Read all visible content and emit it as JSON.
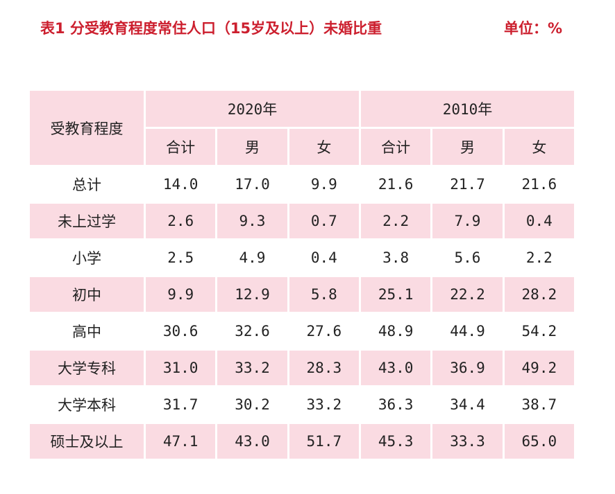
{
  "title": {
    "text": "表1  分受教育程度常住人口（15岁及以上）未婚比重",
    "unit": "单位：%"
  },
  "table": {
    "corner_label": "受教育程度",
    "years": [
      "2020年",
      "2010年"
    ],
    "subheaders": [
      "合计",
      "男",
      "女",
      "合计",
      "男",
      "女"
    ],
    "rows": [
      {
        "label": "总计",
        "values": [
          "14.0",
          "17.0",
          "9.9",
          "21.6",
          "21.7",
          "21.6"
        ]
      },
      {
        "label": "未上过学",
        "values": [
          "2.6",
          "9.3",
          "0.7",
          "2.2",
          "7.9",
          "0.4"
        ]
      },
      {
        "label": "小学",
        "values": [
          "2.5",
          "4.9",
          "0.4",
          "3.8",
          "5.6",
          "2.2"
        ]
      },
      {
        "label": "初中",
        "values": [
          "9.9",
          "12.9",
          "5.8",
          "25.1",
          "22.2",
          "28.2"
        ]
      },
      {
        "label": "高中",
        "values": [
          "30.6",
          "32.6",
          "27.6",
          "48.9",
          "44.9",
          "54.2"
        ]
      },
      {
        "label": "大学专科",
        "values": [
          "31.0",
          "33.2",
          "28.3",
          "43.0",
          "36.9",
          "49.2"
        ]
      },
      {
        "label": "大学本科",
        "values": [
          "31.7",
          "30.2",
          "33.2",
          "36.3",
          "34.4",
          "38.7"
        ]
      },
      {
        "label": "硕士及以上",
        "values": [
          "47.1",
          "43.0",
          "51.7",
          "45.3",
          "33.3",
          "65.0"
        ]
      }
    ]
  },
  "colors": {
    "title": "#cc1f2e",
    "shade": "#fadbe2",
    "text": "#222222"
  }
}
